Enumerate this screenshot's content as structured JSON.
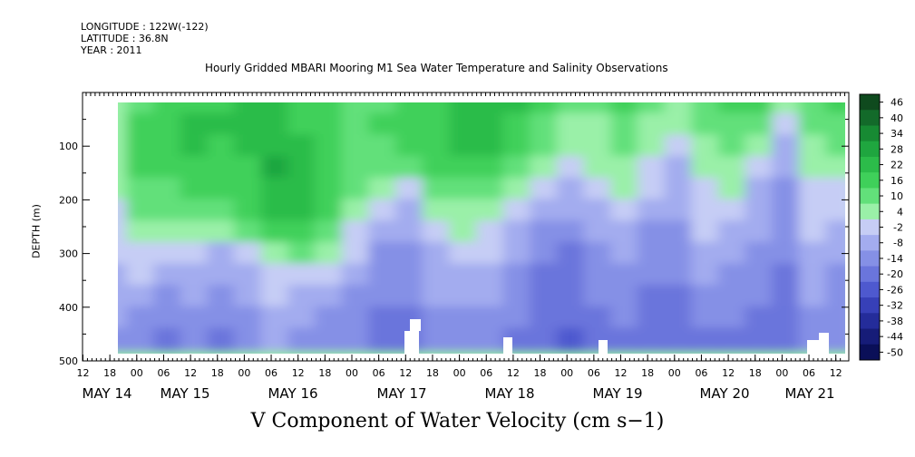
{
  "chart_data": {
    "type": "heatmap",
    "header": {
      "longitude": "LONGITUDE : 122W(-122)",
      "latitude": "LATITUDE : 36.8N",
      "year": "YEAR : 2011"
    },
    "title": "Hourly Gridded MBARI Mooring M1 Sea Water Temperature and Salinity Observations",
    "xlabel": "V Component of Water Velocity (cm s−1)",
    "ylabel": "DEPTH (m)",
    "y_axis": {
      "reversed": true,
      "ylim": [
        500,
        0
      ],
      "tick_labels": [
        "100",
        "200",
        "300",
        "400",
        "500"
      ],
      "tick_values": [
        100,
        200,
        300,
        400,
        500
      ]
    },
    "x_axis": {
      "hour_labels": [
        "12",
        "18",
        "00",
        "06",
        "12",
        "18",
        "00",
        "06",
        "12",
        "18",
        "00",
        "06",
        "12",
        "18",
        "00",
        "06",
        "12",
        "18",
        "00",
        "06",
        "12",
        "18",
        "00",
        "06",
        "12",
        "18",
        "00",
        "06",
        "12"
      ],
      "day_labels": [
        "MAY 14",
        "MAY 15",
        "MAY 16",
        "MAY 17",
        "MAY 18",
        "MAY 19",
        "MAY 20",
        "MAY 21"
      ]
    },
    "colorbar": {
      "labels": [
        "46",
        "40",
        "34",
        "28",
        "22",
        "16",
        "10",
        "4",
        "-2",
        "-8",
        "-14",
        "-20",
        "-26",
        "-32",
        "-38",
        "-44",
        "-50"
      ],
      "values": [
        46,
        40,
        34,
        28,
        22,
        16,
        10,
        4,
        -2,
        -8,
        -14,
        -20,
        -26,
        -32,
        -38,
        -44,
        -50
      ],
      "colors": [
        "#0f4a1e",
        "#136a2a",
        "#178a33",
        "#1fa63f",
        "#2cbc4a",
        "#3fd05a",
        "#62e07a",
        "#9af0a8",
        "#c6cdf5",
        "#a3acef",
        "#8590e6",
        "#6a75dc",
        "#4e59cf",
        "#3740b8",
        "#242c9a",
        "#161c78",
        "#0a0f58"
      ]
    },
    "depth_bands_m": [
      20,
      60,
      100,
      140,
      180,
      220,
      260,
      300,
      340,
      380,
      420,
      460
    ],
    "time_columns_day": [
      14.75,
      15.0,
      15.25,
      15.5,
      15.75,
      16.0,
      16.25,
      16.5,
      16.75,
      17.0,
      17.25,
      17.5,
      17.75,
      18.0,
      18.25,
      18.5,
      18.75,
      19.0,
      19.25,
      19.5,
      19.75,
      20.0,
      20.25,
      20.5,
      20.75,
      21.0,
      21.25,
      21.5
    ],
    "values_cm_s": [
      [
        6,
        14,
        16,
        18,
        20,
        22,
        22,
        20,
        18,
        14,
        14,
        16,
        20,
        24,
        26,
        22,
        16,
        10,
        12,
        18,
        10,
        6,
        14,
        18,
        20,
        4,
        14,
        20
      ],
      [
        8,
        16,
        18,
        22,
        22,
        24,
        24,
        20,
        18,
        14,
        16,
        18,
        20,
        24,
        24,
        20,
        14,
        6,
        8,
        14,
        8,
        4,
        10,
        14,
        12,
        -2,
        10,
        14
      ],
      [
        8,
        18,
        18,
        22,
        20,
        22,
        26,
        22,
        18,
        14,
        14,
        16,
        20,
        22,
        22,
        18,
        10,
        4,
        6,
        10,
        6,
        -2,
        6,
        10,
        6,
        -6,
        6,
        10
      ],
      [
        6,
        16,
        16,
        20,
        18,
        20,
        28,
        26,
        20,
        14,
        10,
        12,
        16,
        18,
        16,
        12,
        4,
        0,
        4,
        8,
        2,
        -4,
        4,
        8,
        -2,
        -8,
        4,
        6
      ],
      [
        4,
        14,
        14,
        16,
        16,
        18,
        26,
        26,
        18,
        10,
        4,
        2,
        10,
        14,
        10,
        6,
        -2,
        -4,
        0,
        4,
        -2,
        -6,
        2,
        4,
        -4,
        -10,
        2,
        2
      ],
      [
        2,
        10,
        10,
        12,
        12,
        16,
        22,
        22,
        16,
        6,
        -2,
        -4,
        4,
        8,
        4,
        2,
        -8,
        -8,
        -4,
        0,
        -6,
        -8,
        0,
        0,
        -6,
        -12,
        0,
        -2
      ],
      [
        0,
        6,
        4,
        8,
        6,
        10,
        16,
        18,
        12,
        2,
        -6,
        -8,
        -2,
        4,
        0,
        -4,
        -12,
        -12,
        -8,
        -4,
        -10,
        -10,
        -2,
        -4,
        -8,
        -14,
        -2,
        -6
      ],
      [
        -2,
        2,
        -2,
        2,
        -4,
        2,
        8,
        10,
        6,
        -2,
        -10,
        -10,
        -4,
        0,
        -2,
        -8,
        -14,
        -16,
        -10,
        -8,
        -12,
        -12,
        -6,
        -8,
        -10,
        -14,
        -4,
        -8
      ],
      [
        -4,
        -2,
        -6,
        -4,
        -8,
        -4,
        2,
        2,
        0,
        -6,
        -12,
        -12,
        -6,
        -4,
        -4,
        -10,
        -16,
        -18,
        -12,
        -10,
        -14,
        -14,
        -8,
        -10,
        -12,
        -16,
        -6,
        -10
      ],
      [
        -6,
        -6,
        -10,
        -8,
        -12,
        -8,
        -2,
        -4,
        -6,
        -10,
        -14,
        -14,
        -8,
        -8,
        -8,
        -12,
        -18,
        -20,
        -14,
        -12,
        -16,
        -16,
        -12,
        -12,
        -14,
        -18,
        -8,
        -12
      ],
      [
        -8,
        -10,
        -14,
        -12,
        -14,
        -10,
        -6,
        -8,
        -10,
        -12,
        -16,
        -16,
        -10,
        -10,
        -10,
        -14,
        -20,
        -20,
        -16,
        -14,
        -18,
        -18,
        -14,
        -14,
        -16,
        -18,
        -10,
        -14
      ],
      [
        -10,
        -14,
        -16,
        -14,
        -16,
        -12,
        -8,
        -10,
        -12,
        -14,
        -16,
        -16,
        -12,
        -12,
        -12,
        -16,
        -20,
        -22,
        -18,
        -16,
        -18,
        -18,
        -16,
        -16,
        -16,
        -20,
        -12,
        -14
      ]
    ]
  }
}
